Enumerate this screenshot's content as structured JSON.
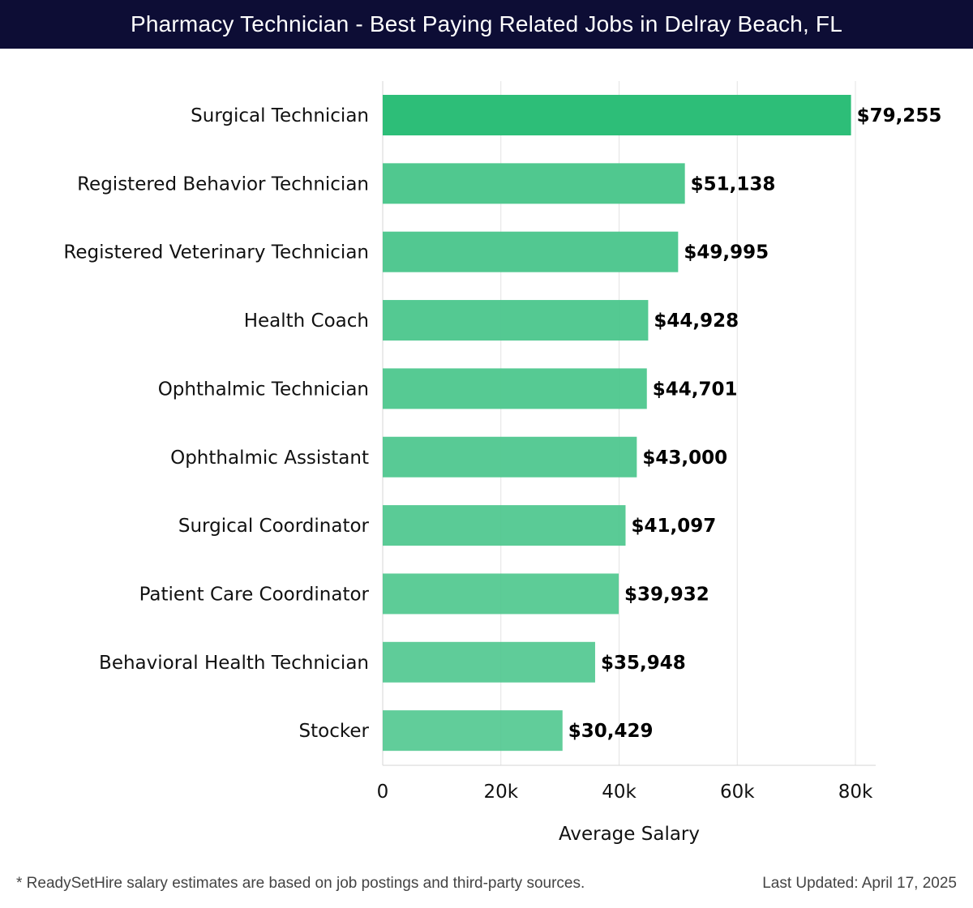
{
  "header": {
    "title": "Pharmacy Technician - Best Paying Related Jobs in Delray Beach, FL"
  },
  "footer": {
    "note": "* ReadySetHire salary estimates are based on job postings and third-party sources.",
    "updated": "Last Updated: April 17, 2025"
  },
  "colors": {
    "title_bar": "#0d0d35",
    "bar_top": "#2dbe78",
    "bar": "#4ec78e"
  },
  "chart_data": {
    "type": "bar",
    "orientation": "horizontal",
    "title": "Pharmacy Technician - Best Paying Related Jobs in Delray Beach, FL",
    "xlabel": "Average Salary",
    "ylabel": "",
    "xlim": [
      0,
      80000
    ],
    "grid": true,
    "categories": [
      "Surgical Technician",
      "Registered Behavior Technician",
      "Registered Veterinary Technician",
      "Health Coach",
      "Ophthalmic Technician",
      "Ophthalmic Assistant",
      "Surgical Coordinator",
      "Patient Care Coordinator",
      "Behavioral Health Technician",
      "Stocker"
    ],
    "values": [
      79255,
      51138,
      49995,
      44928,
      44701,
      43000,
      41097,
      39932,
      35948,
      30429
    ],
    "value_labels": [
      "$79,255",
      "$51,138",
      "$49,995",
      "$44,928",
      "$44,701",
      "$43,000",
      "$41,097",
      "$39,932",
      "$35,948",
      "$30,429"
    ],
    "ticks": [
      0,
      20000,
      40000,
      60000,
      80000
    ],
    "tick_labels": [
      "0",
      "20k",
      "40k",
      "60k",
      "80k"
    ]
  }
}
